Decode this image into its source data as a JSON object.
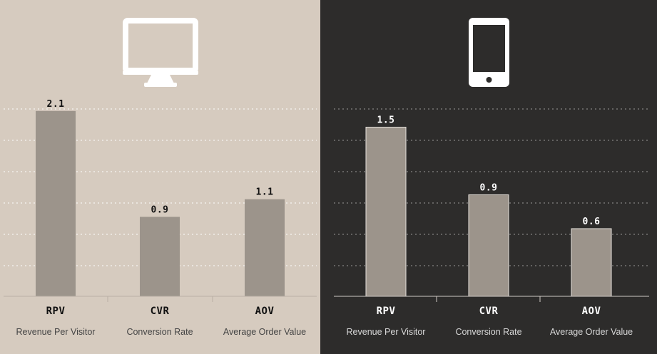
{
  "chart_data": [
    {
      "type": "bar",
      "device": "desktop",
      "icon": "desktop-monitor-icon",
      "categories": [
        "RPV",
        "CVR",
        "AOV"
      ],
      "category_descriptions": [
        "Revenue Per Visitor",
        "Conversion Rate",
        "Average Order Value"
      ],
      "values": [
        2.1,
        0.9,
        1.1
      ],
      "value_labels": [
        "2.1",
        "0.9",
        "1.1"
      ],
      "ylim": [
        0,
        2.3
      ],
      "grid": true,
      "colors": {
        "background": "#d6cbbf",
        "bar": "#9c948b",
        "text": "#111111",
        "subtext": "#444444",
        "grid": "#ffffff",
        "icon": "#ffffff"
      }
    },
    {
      "type": "bar",
      "device": "mobile",
      "icon": "mobile-phone-icon",
      "categories": [
        "RPV",
        "CVR",
        "AOV"
      ],
      "category_descriptions": [
        "Revenue Per Visitor",
        "Conversion Rate",
        "Average Order Value"
      ],
      "values": [
        1.5,
        0.9,
        0.6
      ],
      "value_labels": [
        "1.5",
        "0.9",
        "0.6"
      ],
      "ylim": [
        0,
        1.8
      ],
      "grid": true,
      "colors": {
        "background": "#2d2c2b",
        "bar": "#9c948b",
        "text": "#ffffff",
        "subtext": "#d8d8d8",
        "grid": "#9a9a9a",
        "icon": "#ffffff"
      }
    }
  ]
}
